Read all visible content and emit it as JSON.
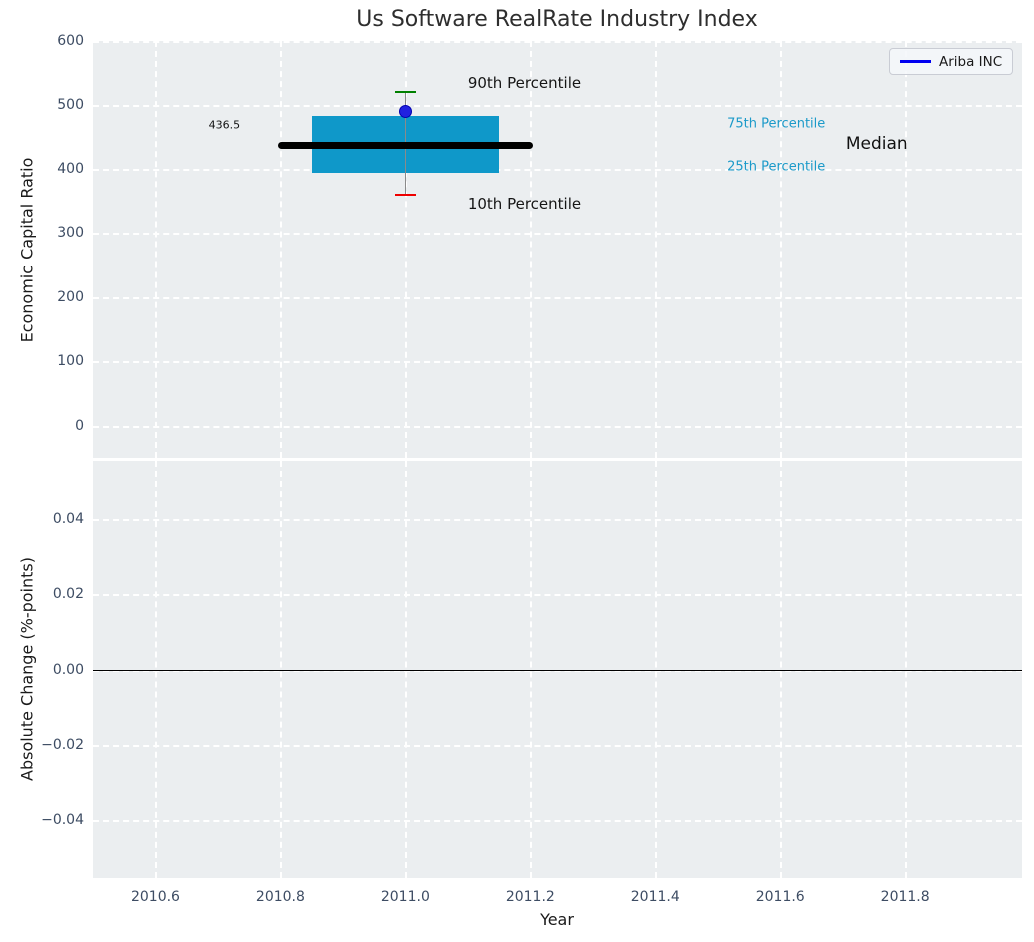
{
  "figure": {
    "background": "#ffffff",
    "axes_background": "#ebeef0",
    "grid_color": "#ffffff",
    "tick_color": "#3d4c63",
    "text_color": "#1a1a1a"
  },
  "x_axis": {
    "label": "Year",
    "tick_values": [
      2010.6,
      2010.8,
      2011.0,
      2011.2,
      2011.4,
      2011.6,
      2011.8
    ],
    "tick_labels": [
      "2010.6",
      "2010.8",
      "2011.0",
      "2011.2",
      "2011.4",
      "2011.6",
      "2011.8"
    ],
    "xlim": [
      2010.5,
      2011.987
    ]
  },
  "chart_data": [
    {
      "type": "box",
      "title": "Us Software RealRate Industry Index",
      "ylabel": "Economic Capital Ratio",
      "ylim": [
        -50.7,
        600
      ],
      "ytick_values": [
        0,
        100,
        200,
        300,
        400,
        500,
        600
      ],
      "ytick_labels": [
        "0",
        "100",
        "200",
        "300",
        "400",
        "500",
        "600"
      ],
      "grid": true,
      "box": {
        "x": 2011.0,
        "p10": 360,
        "p25": 394,
        "median": 436.5,
        "p75": 483.5,
        "p90": 520.5,
        "box_half_width": 0.15,
        "median_half_width": 0.204,
        "cap_half_width": 0.0165,
        "box_color": "#0f98c9",
        "median_color": "#000000",
        "whisker_color": "#8a8a8a",
        "p90_cap_color": "#008000",
        "p10_cap_color": "#ee0000"
      },
      "company_point": {
        "label": "Ariba INC",
        "x": 2011.0,
        "y": 490,
        "color": "#2121e0",
        "edge_color": "#0101b0"
      },
      "legend": {
        "label": "Ariba INC",
        "line_color": "#0000f0",
        "position": "upper right"
      },
      "annotations": [
        {
          "text": "90th Percentile",
          "x": 2011.1,
          "y": 534,
          "color": "#161616",
          "size": 15
        },
        {
          "text": "10th Percentile",
          "x": 2011.1,
          "y": 346,
          "color": "#161616",
          "size": 15
        },
        {
          "text": "75th Percentile",
          "x": 2011.515,
          "y": 471,
          "color": "#1b9ac9",
          "size": 13
        },
        {
          "text": "25th Percentile",
          "x": 2011.515,
          "y": 404,
          "color": "#1b9ac9",
          "size": 13
        },
        {
          "text": "Median",
          "x": 2011.705,
          "y": 439,
          "color": "#111111",
          "size": 17
        },
        {
          "text": "436.5",
          "x": 2010.685,
          "y": 469,
          "color": "#111111",
          "size": 11
        }
      ]
    },
    {
      "type": "line",
      "ylabel": "Absolute Change (%-points)",
      "ylim": [
        -0.0553,
        0.0553
      ],
      "ytick_values": [
        0.04,
        0.02,
        0.0,
        -0.02,
        -0.04
      ],
      "ytick_labels": [
        "0.04",
        "0.02",
        "0.00",
        "−0.02",
        "−0.04"
      ],
      "grid": true,
      "zero_line_y": 0.0,
      "series": []
    }
  ]
}
